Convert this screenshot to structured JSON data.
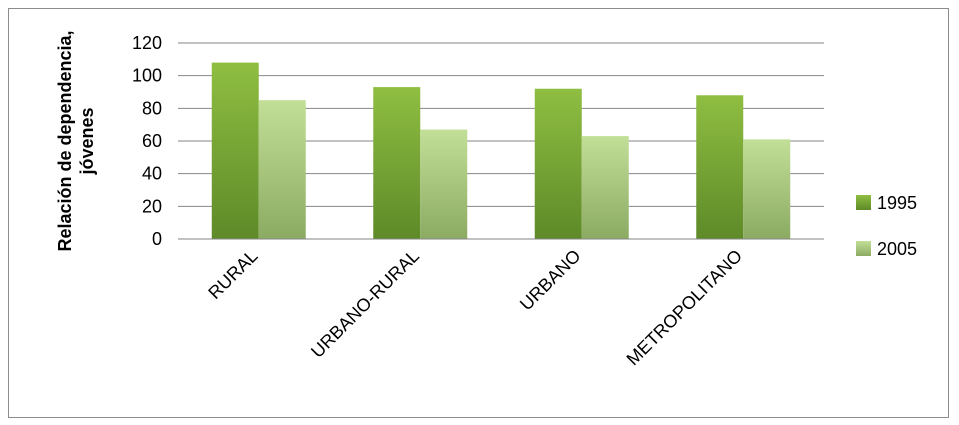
{
  "chart_data": {
    "type": "bar",
    "categories": [
      "RURAL",
      "URBANO-RURAL",
      "URBANO",
      "METROPOLITANO"
    ],
    "series": [
      {
        "name": "1995",
        "values": [
          108,
          93,
          92,
          88
        ],
        "color": "#77a22e"
      },
      {
        "name": "2005",
        "values": [
          85,
          67,
          63,
          61
        ],
        "color": "#b0d07f"
      }
    ],
    "title": "",
    "xlabel": "",
    "ylabel": "Relación de dependencia, jóvenes",
    "ylabel_lines": [
      "Relación de dependencia,",
      "jóvenes"
    ],
    "ylim": [
      0,
      120
    ],
    "yticks": [
      "0",
      "20",
      "40",
      "60",
      "80",
      "100",
      "120"
    ],
    "grid": true,
    "legend_position": "right"
  }
}
